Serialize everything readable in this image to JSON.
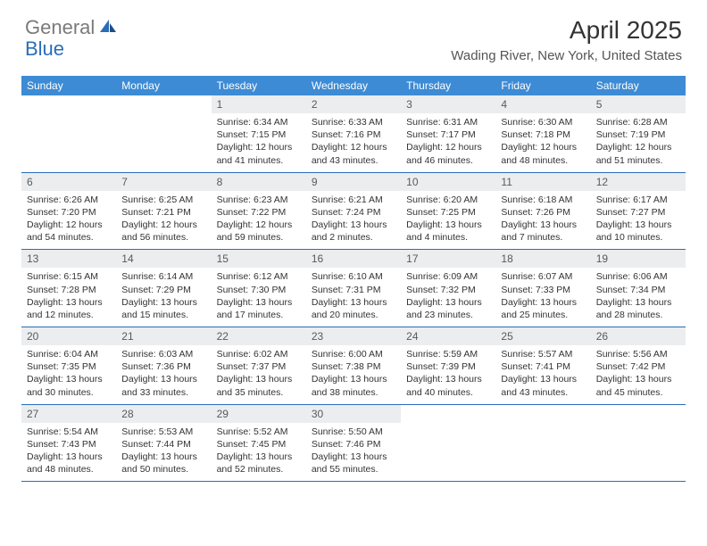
{
  "logo": {
    "gray": "General",
    "blue": "Blue"
  },
  "title": "April 2025",
  "location": "Wading River, New York, United States",
  "colors": {
    "header_bg": "#3d8bd4",
    "header_text": "#ffffff",
    "daynum_bg": "#ebedef",
    "daynum_text": "#5a5a5a",
    "body_text": "#333333",
    "rule": "#2a6db8",
    "logo_gray": "#7a7a7a",
    "logo_blue": "#2a6db8"
  },
  "day_names": [
    "Sunday",
    "Monday",
    "Tuesday",
    "Wednesday",
    "Thursday",
    "Friday",
    "Saturday"
  ],
  "weeks": [
    [
      null,
      null,
      {
        "n": 1,
        "sr": "6:34 AM",
        "ss": "7:15 PM",
        "dl": "12 hours and 41 minutes."
      },
      {
        "n": 2,
        "sr": "6:33 AM",
        "ss": "7:16 PM",
        "dl": "12 hours and 43 minutes."
      },
      {
        "n": 3,
        "sr": "6:31 AM",
        "ss": "7:17 PM",
        "dl": "12 hours and 46 minutes."
      },
      {
        "n": 4,
        "sr": "6:30 AM",
        "ss": "7:18 PM",
        "dl": "12 hours and 48 minutes."
      },
      {
        "n": 5,
        "sr": "6:28 AM",
        "ss": "7:19 PM",
        "dl": "12 hours and 51 minutes."
      }
    ],
    [
      {
        "n": 6,
        "sr": "6:26 AM",
        "ss": "7:20 PM",
        "dl": "12 hours and 54 minutes."
      },
      {
        "n": 7,
        "sr": "6:25 AM",
        "ss": "7:21 PM",
        "dl": "12 hours and 56 minutes."
      },
      {
        "n": 8,
        "sr": "6:23 AM",
        "ss": "7:22 PM",
        "dl": "12 hours and 59 minutes."
      },
      {
        "n": 9,
        "sr": "6:21 AM",
        "ss": "7:24 PM",
        "dl": "13 hours and 2 minutes."
      },
      {
        "n": 10,
        "sr": "6:20 AM",
        "ss": "7:25 PM",
        "dl": "13 hours and 4 minutes."
      },
      {
        "n": 11,
        "sr": "6:18 AM",
        "ss": "7:26 PM",
        "dl": "13 hours and 7 minutes."
      },
      {
        "n": 12,
        "sr": "6:17 AM",
        "ss": "7:27 PM",
        "dl": "13 hours and 10 minutes."
      }
    ],
    [
      {
        "n": 13,
        "sr": "6:15 AM",
        "ss": "7:28 PM",
        "dl": "13 hours and 12 minutes."
      },
      {
        "n": 14,
        "sr": "6:14 AM",
        "ss": "7:29 PM",
        "dl": "13 hours and 15 minutes."
      },
      {
        "n": 15,
        "sr": "6:12 AM",
        "ss": "7:30 PM",
        "dl": "13 hours and 17 minutes."
      },
      {
        "n": 16,
        "sr": "6:10 AM",
        "ss": "7:31 PM",
        "dl": "13 hours and 20 minutes."
      },
      {
        "n": 17,
        "sr": "6:09 AM",
        "ss": "7:32 PM",
        "dl": "13 hours and 23 minutes."
      },
      {
        "n": 18,
        "sr": "6:07 AM",
        "ss": "7:33 PM",
        "dl": "13 hours and 25 minutes."
      },
      {
        "n": 19,
        "sr": "6:06 AM",
        "ss": "7:34 PM",
        "dl": "13 hours and 28 minutes."
      }
    ],
    [
      {
        "n": 20,
        "sr": "6:04 AM",
        "ss": "7:35 PM",
        "dl": "13 hours and 30 minutes."
      },
      {
        "n": 21,
        "sr": "6:03 AM",
        "ss": "7:36 PM",
        "dl": "13 hours and 33 minutes."
      },
      {
        "n": 22,
        "sr": "6:02 AM",
        "ss": "7:37 PM",
        "dl": "13 hours and 35 minutes."
      },
      {
        "n": 23,
        "sr": "6:00 AM",
        "ss": "7:38 PM",
        "dl": "13 hours and 38 minutes."
      },
      {
        "n": 24,
        "sr": "5:59 AM",
        "ss": "7:39 PM",
        "dl": "13 hours and 40 minutes."
      },
      {
        "n": 25,
        "sr": "5:57 AM",
        "ss": "7:41 PM",
        "dl": "13 hours and 43 minutes."
      },
      {
        "n": 26,
        "sr": "5:56 AM",
        "ss": "7:42 PM",
        "dl": "13 hours and 45 minutes."
      }
    ],
    [
      {
        "n": 27,
        "sr": "5:54 AM",
        "ss": "7:43 PM",
        "dl": "13 hours and 48 minutes."
      },
      {
        "n": 28,
        "sr": "5:53 AM",
        "ss": "7:44 PM",
        "dl": "13 hours and 50 minutes."
      },
      {
        "n": 29,
        "sr": "5:52 AM",
        "ss": "7:45 PM",
        "dl": "13 hours and 52 minutes."
      },
      {
        "n": 30,
        "sr": "5:50 AM",
        "ss": "7:46 PM",
        "dl": "13 hours and 55 minutes."
      },
      null,
      null,
      null
    ]
  ],
  "labels": {
    "sunrise": "Sunrise:",
    "sunset": "Sunset:",
    "daylight": "Daylight:"
  }
}
